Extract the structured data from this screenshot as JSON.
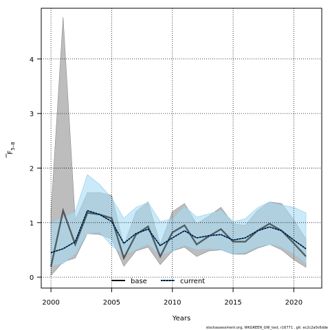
{
  "chart_data": {
    "type": "area",
    "title": "",
    "xlabel": "Years",
    "ylabel_main": "F",
    "ylabel_sub": "5–8",
    "xlim": [
      1999.2,
      2022.3
    ],
    "ylim": [
      -0.2,
      4.93
    ],
    "x_ticks": [
      2000,
      2005,
      2010,
      2015,
      2020
    ],
    "y_ticks": [
      0,
      1,
      2,
      3,
      4
    ],
    "grid": "dotted",
    "legend_position": "bottom-center",
    "x": [
      2000,
      2001,
      2002,
      2003,
      2004,
      2005,
      2006,
      2007,
      2008,
      2009,
      2010,
      2011,
      2012,
      2013,
      2014,
      2015,
      2016,
      2017,
      2018,
      2019,
      2020,
      2021
    ],
    "series": [
      {
        "name": "base",
        "color": "#000000",
        "band_color": "#bdbdbd",
        "line_style": "solid",
        "values": [
          0.19,
          1.22,
          0.6,
          1.18,
          1.15,
          1.08,
          0.35,
          0.78,
          0.93,
          0.38,
          0.82,
          0.95,
          0.6,
          0.75,
          0.88,
          0.65,
          0.65,
          0.85,
          0.98,
          0.85,
          0.62,
          0.38
        ],
        "lower": [
          0.03,
          0.28,
          0.35,
          0.8,
          0.78,
          0.7,
          0.2,
          0.48,
          0.55,
          0.23,
          0.48,
          0.55,
          0.38,
          0.48,
          0.5,
          0.42,
          0.42,
          0.53,
          0.6,
          0.5,
          0.32,
          0.18
        ],
        "upper": [
          1.2,
          4.77,
          1.05,
          1.55,
          1.55,
          1.5,
          0.58,
          1.2,
          1.38,
          0.6,
          1.2,
          1.35,
          0.98,
          1.12,
          1.28,
          0.98,
          0.95,
          1.22,
          1.38,
          1.35,
          1.05,
          0.7
        ]
      },
      {
        "name": "current",
        "color": "#1565a8",
        "band_color": "#a8dcf5",
        "line_style": "dotted",
        "values": [
          0.45,
          0.52,
          0.65,
          1.22,
          1.15,
          1.02,
          0.62,
          0.8,
          0.88,
          0.58,
          0.72,
          0.85,
          0.72,
          0.76,
          0.78,
          0.68,
          0.72,
          0.85,
          0.92,
          0.85,
          0.68,
          0.52
        ],
        "lower": [
          0.2,
          0.25,
          0.42,
          0.8,
          0.82,
          0.58,
          0.4,
          0.5,
          0.6,
          0.4,
          0.48,
          0.58,
          0.5,
          0.52,
          0.5,
          0.42,
          0.45,
          0.55,
          0.6,
          0.55,
          0.42,
          0.25
        ],
        "upper": [
          1.0,
          1.1,
          1.2,
          1.88,
          1.7,
          1.45,
          1.08,
          1.28,
          1.37,
          1.02,
          1.07,
          1.3,
          1.1,
          1.16,
          1.23,
          1.02,
          1.07,
          1.27,
          1.38,
          1.32,
          1.28,
          1.18
        ]
      }
    ]
  },
  "footnote": "stockassessment.org, WKGREEN_GNI_test, r16771 , git: ec2c2a0c6dde"
}
